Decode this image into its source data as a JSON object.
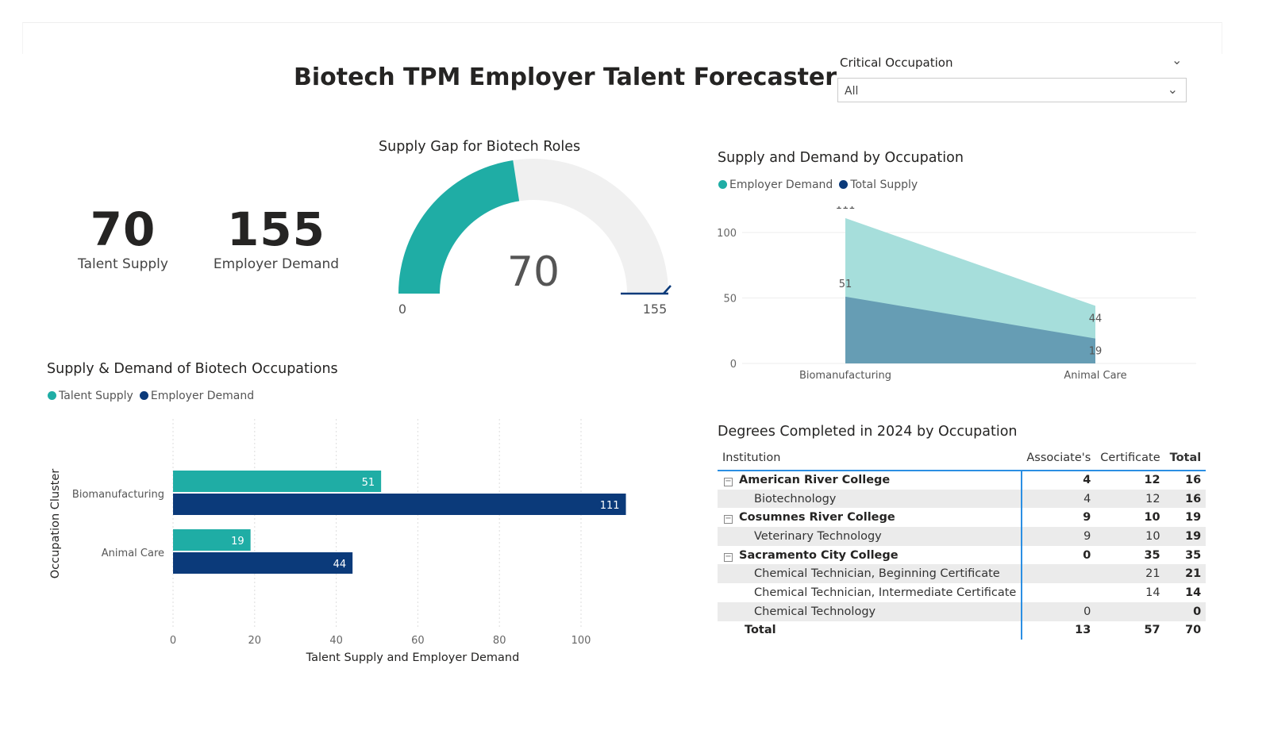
{
  "header": {
    "title": "Biotech TPM Employer Talent Forecaster"
  },
  "slicer": {
    "label": "Critical Occupation",
    "value": "All"
  },
  "cards": [
    {
      "value": "70",
      "label": "Talent Supply"
    },
    {
      "value": "155",
      "label": "Employer Demand"
    }
  ],
  "gauge": {
    "title": "Supply Gap for Biotech Roles",
    "value": 70,
    "min": 0,
    "max": 155,
    "value_label": "70",
    "min_label": "0",
    "max_label": "155",
    "fill_color": "#1fada5",
    "track_color": "#f0f0f0",
    "target_color": "#0b3a7a"
  },
  "bar_chart_title": "Supply & Demand of Biotech Occupations",
  "area_chart_title": "Supply and Demand by Occupation",
  "chart_data": [
    {
      "type": "bar",
      "orientation": "horizontal",
      "categories": [
        "Biomanufacturing",
        "Animal Care"
      ],
      "series": [
        {
          "name": "Talent Supply",
          "values": [
            51,
            19
          ],
          "color": "#1fada5"
        },
        {
          "name": "Employer Demand",
          "values": [
            111,
            44
          ],
          "color": "#0b3a7a"
        }
      ],
      "xlabel": "Talent Supply and Employer Demand",
      "ylabel": "Occupation Cluster",
      "xticks": [
        "0",
        "20",
        "40",
        "60",
        "80",
        "100"
      ],
      "xlim": [
        0,
        120
      ],
      "grid": true,
      "legend": "top-left"
    },
    {
      "type": "area",
      "categories": [
        "Biomanufacturing",
        "Animal Care"
      ],
      "series": [
        {
          "name": "Employer Demand",
          "values": [
            111,
            44
          ],
          "color": "#1fada5",
          "fill": "#a6dedb"
        },
        {
          "name": "Total Supply",
          "values": [
            51,
            19
          ],
          "color": "#0b3a7a",
          "fill": "#669db4"
        }
      ],
      "yticks": [
        "0",
        "50",
        "100"
      ],
      "ylim": [
        0,
        110
      ],
      "grid": true,
      "legend": "top-left"
    }
  ],
  "table": {
    "title": "Degrees Completed in 2024 by Occupation",
    "columns": [
      "Institution",
      "Associate's",
      "Certificate",
      "Total"
    ],
    "rows": [
      {
        "level": 0,
        "name": "American River College",
        "assoc": "4",
        "cert": "12",
        "total": "16"
      },
      {
        "level": 1,
        "name": "Biotechnology",
        "assoc": "4",
        "cert": "12",
        "total": "16"
      },
      {
        "level": 0,
        "name": "Cosumnes River College",
        "assoc": "9",
        "cert": "10",
        "total": "19"
      },
      {
        "level": 1,
        "name": "Veterinary Technology",
        "assoc": "9",
        "cert": "10",
        "total": "19"
      },
      {
        "level": 0,
        "name": "Sacramento City College",
        "assoc": "0",
        "cert": "35",
        "total": "35"
      },
      {
        "level": 1,
        "name": "Chemical Technician, Beginning Certificate",
        "assoc": "",
        "cert": "21",
        "total": "21"
      },
      {
        "level": 1,
        "name": "Chemical Technician, Intermediate Certificate",
        "assoc": "",
        "cert": "14",
        "total": "14"
      },
      {
        "level": 1,
        "name": "Chemical Technology",
        "assoc": "0",
        "cert": "",
        "total": "0"
      }
    ],
    "total": {
      "name": "Total",
      "assoc": "13",
      "cert": "57",
      "total": "70"
    }
  }
}
